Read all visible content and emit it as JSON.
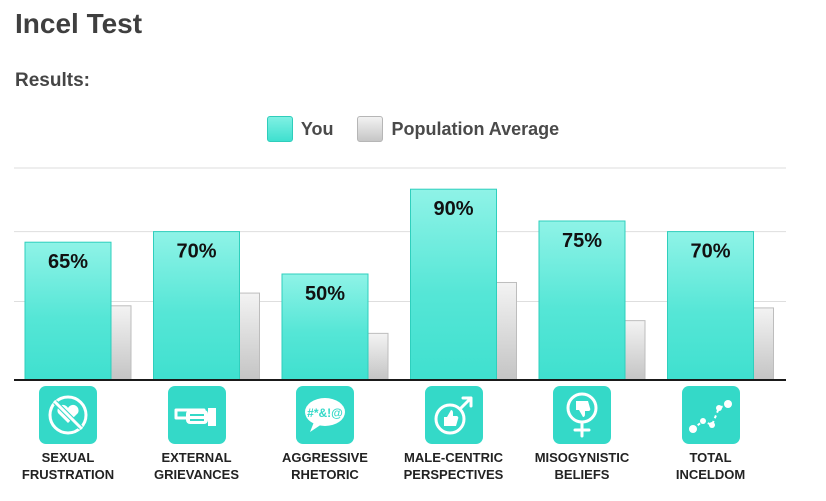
{
  "page": {
    "title": "Incel Test",
    "results_label": "Results:"
  },
  "legend": {
    "you": "You",
    "population": "Population Average"
  },
  "colors": {
    "you": "#3fe0cf",
    "population": "#cccccc",
    "icon_tile": "#34d9c8"
  },
  "chart_data": {
    "type": "bar",
    "categories": [
      "SEXUAL FRUSTRATION",
      "EXTERNAL GRIEVANCES",
      "AGGRESSIVE RHETORIC",
      "MALE-CENTRIC PERSPECTIVES",
      "MISOGYNISTIC BELIEFS",
      "TOTAL INCELDOM"
    ],
    "category_lines": [
      [
        "SEXUAL",
        "FRUSTRATION"
      ],
      [
        "EXTERNAL",
        "GRIEVANCES"
      ],
      [
        "AGGRESSIVE",
        "RHETORIC"
      ],
      [
        "MALE-CENTRIC",
        "PERSPECTIVES"
      ],
      [
        "MISOGYNISTIC",
        "BELIEFS"
      ],
      [
        "TOTAL",
        "INCELDOM"
      ]
    ],
    "series": [
      {
        "name": "You",
        "values": [
          65,
          70,
          50,
          90,
          75,
          70
        ],
        "labels": [
          "65%",
          "70%",
          "50%",
          "90%",
          "75%",
          "70%"
        ]
      },
      {
        "name": "Population Average",
        "values": [
          35,
          41,
          22,
          46,
          28,
          34
        ]
      }
    ],
    "ylim": [
      0,
      100
    ],
    "grid": true,
    "legend_position": "top-center",
    "icons": [
      "no-heart-icon",
      "pointing-hand-icon",
      "speech-bubble-icon",
      "male-thumbs-up-icon",
      "female-thumbs-down-icon",
      "line-graph-icon"
    ]
  }
}
